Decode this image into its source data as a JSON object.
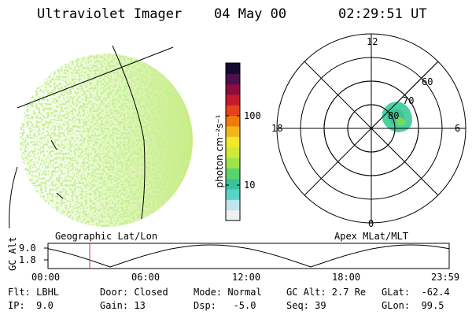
{
  "header": {
    "title": "Ultraviolet Imager",
    "date": "04 May 00",
    "time": "02:29:51 UT"
  },
  "colorbar": {
    "unit_label": "photon cm⁻²s⁻¹",
    "ticks": [
      "100",
      "10"
    ],
    "colors": [
      "#f0f0f0",
      "#bfe6ea",
      "#55d6c8",
      "#39c39b",
      "#5bd36a",
      "#9ee34a",
      "#cfe93b",
      "#f2e82a",
      "#f2b61c",
      "#f07a0e",
      "#e4431f",
      "#c31b2b",
      "#8d0e3d",
      "#4a1050",
      "#140c2e"
    ]
  },
  "left_panel": {
    "caption": "Geographic Lat/Lon"
  },
  "right_panel": {
    "caption": "Apex MLat/MLT",
    "mlt_labels": [
      "12",
      "18",
      "6",
      "0"
    ],
    "lat_labels": [
      "60",
      "70",
      "80"
    ]
  },
  "timeline": {
    "ylabel": "GC Alt",
    "yticks": [
      "9.0",
      "1.8"
    ],
    "xticks": [
      "00:00",
      "06:00",
      "12:00",
      "18:00",
      "23:59"
    ],
    "current_time_fraction": 0.104,
    "marker_color": "#c0392b"
  },
  "info": {
    "flt": "Flt: LBHL",
    "ip": "IP:  9.0",
    "door": "Door: Closed",
    "gain": "Gain: 13",
    "mode": "Mode: Normal",
    "dsp": "Dsp:   -5.0",
    "gc_alt": "GC Alt: 2.7 Re",
    "seq": "Seq: 39",
    "glat": "GLat:  -62.4",
    "glon": "GLon:  99.5"
  }
}
